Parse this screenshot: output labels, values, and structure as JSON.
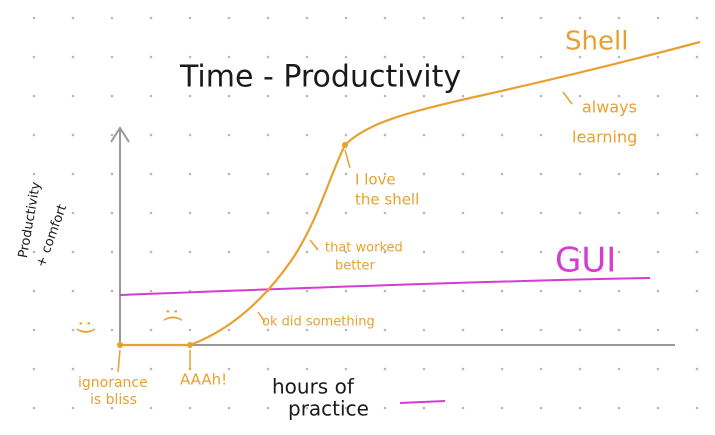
{
  "title": "Time - Productivity",
  "y_axis_label": [
    "Productivity",
    "+ comfort"
  ],
  "x_axis_label": [
    "hours of",
    "practice"
  ],
  "curves": [
    {
      "label": "Shell"
    },
    {
      "label": "GUI"
    }
  ],
  "annotations": [
    {
      "text": ":)"
    },
    {
      "text": ":("
    },
    {
      "text": [
        "ignorance",
        "is bliss"
      ]
    },
    {
      "text": "AAAh!"
    },
    {
      "text": "ok did something"
    },
    {
      "text": [
        "that worked",
        "better"
      ]
    },
    {
      "text": [
        "I love",
        "the shell"
      ]
    },
    {
      "text": [
        "always",
        "learning"
      ]
    }
  ]
}
